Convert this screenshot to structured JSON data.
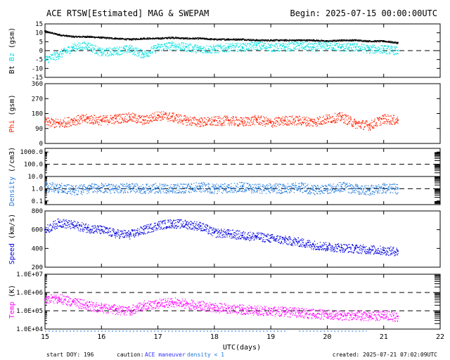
{
  "header": {
    "title": "ACE RTSW[Estimated] MAG & SWEPAM",
    "begin": "Begin: 2025-07-15 00:00:00UTC"
  },
  "footer": {
    "start_doy": "start DOY: 196",
    "caution_label": "caution:",
    "maneuver": "ACE maneuver",
    "density_note": "density < 1",
    "created": "created: 2025-07-21 07:02:09UTC"
  },
  "colors": {
    "bt": "#000000",
    "bz": "#00e0e0",
    "phi": "#ff2000",
    "density": "#1e78dc",
    "speed": "#0000e0",
    "temp": "#ff00ff",
    "maneuver": "#3030ff",
    "density_note": "#1e78dc"
  },
  "chart_data": [
    {
      "type": "scatter",
      "id": "mag",
      "ylabel_parts": [
        {
          "text": "Bt",
          "color": "#000000"
        },
        {
          "text": " Bz",
          "color": "#00e0e0"
        },
        {
          "text": " (gsm)",
          "color": "#000000"
        }
      ],
      "ylim": [
        -15,
        15
      ],
      "yticks": [
        -15,
        -10,
        -5,
        0,
        5,
        10,
        15
      ],
      "ytick_labels": [
        "-15",
        "-10",
        "-5",
        "0",
        "5",
        "10",
        "15"
      ],
      "dashed": [
        0
      ],
      "series": [
        {
          "key": "bt",
          "color": "#000000",
          "x": [
            15.0,
            15.25,
            15.5,
            15.75,
            16.0,
            16.25,
            16.5,
            16.75,
            17.0,
            17.25,
            17.5,
            17.75,
            18.0,
            18.25,
            18.5,
            18.75,
            19.0,
            19.25,
            19.5,
            19.75,
            20.0,
            20.25,
            20.5,
            20.75,
            21.0,
            21.25
          ],
          "y": [
            11,
            9,
            8,
            8,
            7.5,
            7,
            6.5,
            7,
            7,
            7.5,
            7,
            7,
            6.5,
            6.5,
            6.5,
            6,
            6,
            6,
            6,
            6,
            5.5,
            6,
            6,
            5.5,
            5.5,
            4.5
          ]
        },
        {
          "key": "bz",
          "color": "#00e0e0",
          "x": [
            15.0,
            15.25,
            15.5,
            15.75,
            16.0,
            16.25,
            16.5,
            16.75,
            17.0,
            17.25,
            17.5,
            17.75,
            18.0,
            18.25,
            18.5,
            18.75,
            19.0,
            19.25,
            19.5,
            19.75,
            20.0,
            20.25,
            20.5,
            20.75,
            21.0,
            21.25
          ],
          "y": [
            -5,
            -2,
            2,
            3,
            -1,
            0,
            1,
            -2,
            2,
            3,
            2,
            1,
            1,
            2,
            2,
            3,
            2,
            2,
            3,
            2,
            3,
            2,
            2,
            1,
            1,
            0
          ]
        }
      ]
    },
    {
      "type": "scatter",
      "id": "phi",
      "ylabel_parts": [
        {
          "text": "Phi",
          "color": "#ff2000"
        },
        {
          "text": " (gsm)",
          "color": "#000000"
        }
      ],
      "ylim": [
        0,
        360
      ],
      "yticks": [
        0,
        90,
        180,
        270,
        360
      ],
      "ytick_labels": [
        "0",
        "90",
        "180",
        "270",
        "360"
      ],
      "dashed": [],
      "series": [
        {
          "key": "phi",
          "color": "#ff2000",
          "x": [
            15.0,
            15.25,
            15.5,
            15.75,
            16.0,
            16.25,
            16.5,
            16.75,
            17.0,
            17.25,
            17.5,
            17.75,
            18.0,
            18.25,
            18.5,
            18.75,
            19.0,
            19.25,
            19.5,
            19.75,
            20.0,
            20.25,
            20.5,
            20.75,
            21.0,
            21.25
          ],
          "y": [
            130,
            120,
            140,
            150,
            140,
            150,
            160,
            140,
            170,
            160,
            140,
            130,
            135,
            140,
            130,
            145,
            125,
            140,
            140,
            130,
            150,
            160,
            120,
            110,
            150,
            140
          ]
        }
      ]
    },
    {
      "type": "scatter",
      "id": "density",
      "log": true,
      "ylabel_parts": [
        {
          "text": "Density",
          "color": "#1e78dc"
        },
        {
          "text": " (/cm3)",
          "color": "#000000"
        }
      ],
      "ylim": [
        0.05,
        2000
      ],
      "yticks": [
        0.1,
        1,
        10,
        100,
        1000
      ],
      "ytick_labels": [
        "0.1",
        "1.0",
        "10.0",
        "100.0",
        "1000.0"
      ],
      "dashed": [
        1,
        100
      ],
      "solid": [
        10
      ],
      "series": [
        {
          "key": "density",
          "color": "#1e78dc",
          "x": [
            15.0,
            15.25,
            15.5,
            15.75,
            16.0,
            16.25,
            16.5,
            16.75,
            17.0,
            17.25,
            17.5,
            17.75,
            18.0,
            18.25,
            18.5,
            18.75,
            19.0,
            19.25,
            19.5,
            19.75,
            20.0,
            20.25,
            20.5,
            20.75,
            21.0,
            21.25
          ],
          "y": [
            1.5,
            1.2,
            0.8,
            1.0,
            1.2,
            1.0,
            1.3,
            1.0,
            1.2,
            1.0,
            1.1,
            1.5,
            1.0,
            1.2,
            1.5,
            1.0,
            1.2,
            1.0,
            1.5,
            0.8,
            1.0,
            1.5,
            1.0,
            0.8,
            1.2,
            1.0
          ]
        }
      ]
    },
    {
      "type": "scatter",
      "id": "speed",
      "ylabel_parts": [
        {
          "text": "Speed",
          "color": "#0000e0"
        },
        {
          "text": " (km/s)",
          "color": "#000000"
        }
      ],
      "ylim": [
        200,
        800
      ],
      "yticks": [
        200,
        400,
        600,
        800
      ],
      "ytick_labels": [
        "200",
        "400",
        "600",
        "800"
      ],
      "dashed": [],
      "series": [
        {
          "key": "speed",
          "color": "#0000e0",
          "x": [
            15.0,
            15.25,
            15.5,
            15.75,
            16.0,
            16.25,
            16.5,
            16.75,
            17.0,
            17.25,
            17.5,
            17.75,
            18.0,
            18.25,
            18.5,
            18.75,
            19.0,
            19.25,
            19.5,
            19.75,
            20.0,
            20.25,
            20.5,
            20.75,
            21.0,
            21.25
          ],
          "y": [
            600,
            680,
            650,
            620,
            600,
            560,
            550,
            600,
            650,
            670,
            660,
            640,
            570,
            560,
            540,
            530,
            510,
            490,
            470,
            440,
            420,
            410,
            400,
            390,
            380,
            370
          ]
        }
      ]
    },
    {
      "type": "scatter",
      "id": "temp",
      "log": true,
      "ylabel_parts": [
        {
          "text": "Temp",
          "color": "#ff00ff"
        },
        {
          "text": " (K)",
          "color": "#000000"
        }
      ],
      "ylim": [
        10000,
        10000000
      ],
      "yticks": [
        10000,
        100000,
        1000000,
        10000000
      ],
      "ytick_labels": [
        "1.0E+04",
        "1.0E+05",
        "1.0E+06",
        "1.0E+07"
      ],
      "dashed": [
        100000,
        1000000
      ],
      "series": [
        {
          "key": "temp",
          "color": "#ff00ff",
          "x": [
            15.0,
            15.25,
            15.5,
            15.75,
            16.0,
            16.25,
            16.5,
            16.75,
            17.0,
            17.25,
            17.5,
            17.75,
            18.0,
            18.25,
            18.5,
            18.75,
            19.0,
            19.25,
            19.5,
            19.75,
            20.0,
            20.25,
            20.5,
            20.75,
            21.0,
            21.25
          ],
          "y": [
            400000,
            500000,
            300000,
            200000,
            150000,
            120000,
            100000,
            200000,
            250000,
            300000,
            250000,
            200000,
            150000,
            140000,
            120000,
            110000,
            100000,
            90000,
            80000,
            70000,
            65000,
            60000,
            58000,
            55000,
            60000,
            50000
          ]
        }
      ]
    }
  ],
  "xaxis": {
    "label": "UTC(days)",
    "xlim": [
      15,
      22
    ],
    "ticks": [
      15,
      16,
      17,
      18,
      19,
      20,
      21,
      22
    ],
    "tick_labels": [
      "15",
      "16",
      "17",
      "18",
      "19",
      "20",
      "21",
      "22"
    ]
  }
}
